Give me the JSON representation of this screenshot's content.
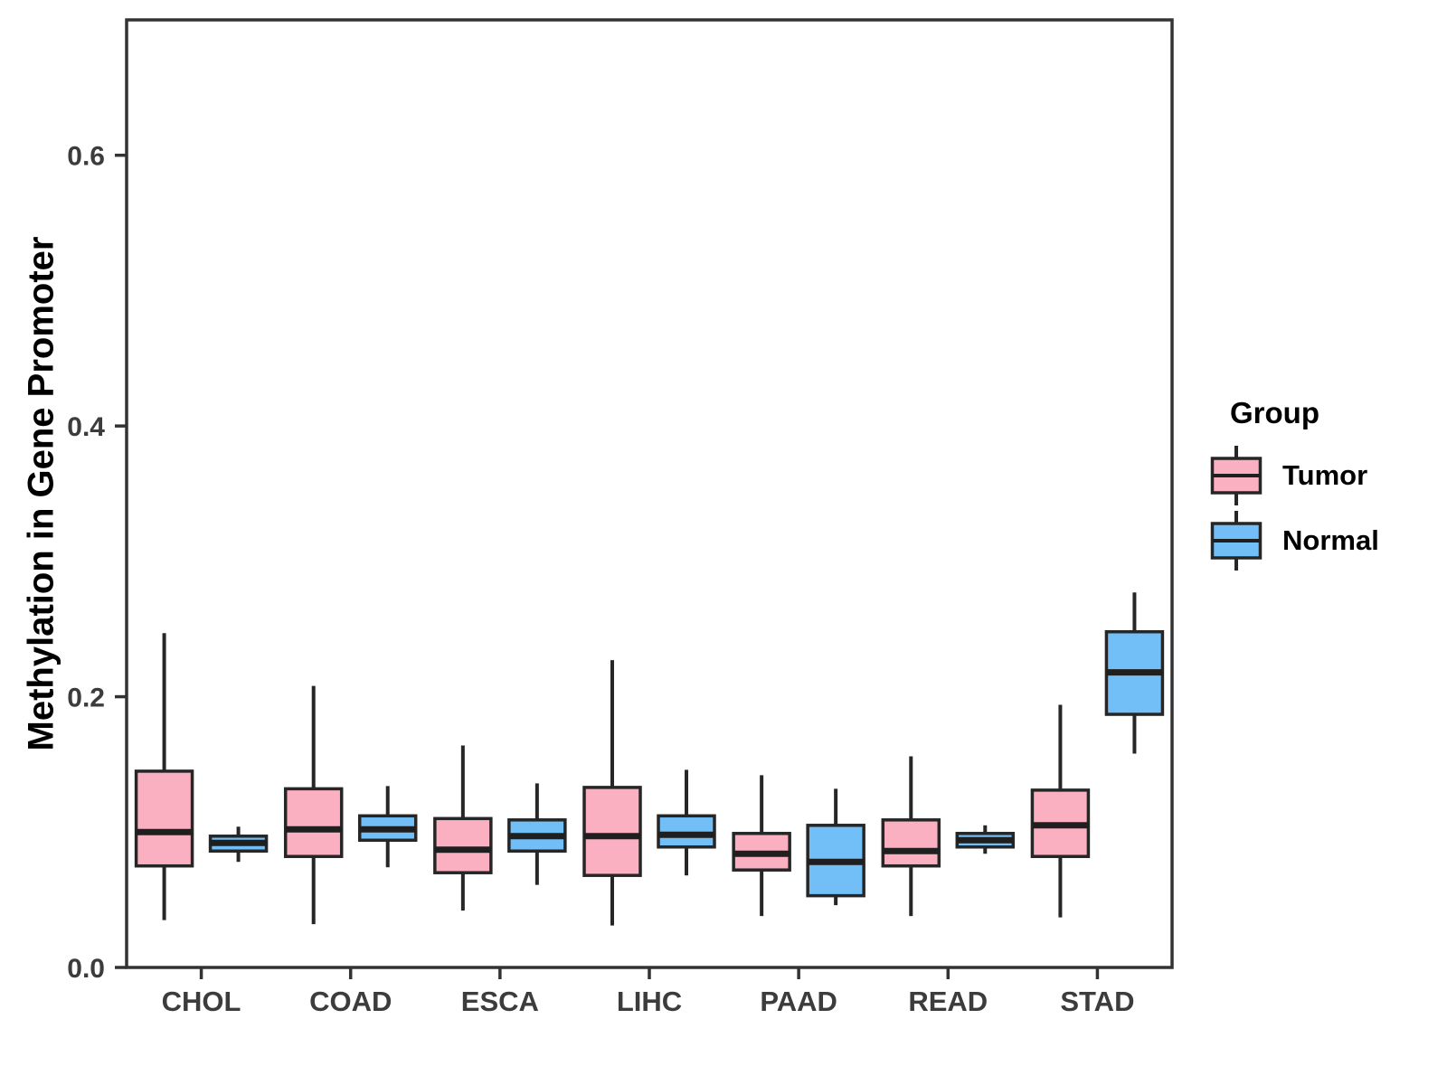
{
  "figure": {
    "y_axis": {
      "title": "Methylation in Gene Promoter",
      "tick_labels": [
        "0.0",
        "0.2",
        "0.4",
        "0.6"
      ]
    },
    "x_axis": {
      "categories": [
        "CHOL",
        "COAD",
        "ESCA",
        "LIHC",
        "PAAD",
        "READ",
        "STAD"
      ]
    },
    "legend": {
      "title": "Group",
      "items": [
        {
          "label": "Tumor",
          "color": "#FAB0C0"
        },
        {
          "label": "Normal",
          "color": "#72BEF6"
        }
      ]
    },
    "colors": {
      "tumor_fill": "#FAB0C0",
      "normal_fill": "#72BEF6",
      "box_stroke": "#262626",
      "panel_border": "#333333",
      "axis_text": "#3C3C3C"
    }
  },
  "chart_data": {
    "type": "box",
    "title": "",
    "xlabel": "",
    "ylabel": "Methylation in Gene Promoter",
    "categories": [
      "CHOL",
      "COAD",
      "ESCA",
      "LIHC",
      "PAAD",
      "READ",
      "STAD"
    ],
    "ylim": [
      0,
      0.7
    ],
    "yticks": [
      0,
      0.2,
      0.4,
      0.6
    ],
    "ytick_labels": [
      "0.0",
      "0.2",
      "0.4",
      "0.6"
    ],
    "grid": false,
    "legend_position": "right",
    "series": [
      {
        "name": "Tumor",
        "color": "#FAB0C0",
        "boxes": [
          {
            "min": 0.035,
            "q1": 0.075,
            "median": 0.1,
            "q3": 0.145,
            "max": 0.247
          },
          {
            "min": 0.032,
            "q1": 0.082,
            "median": 0.102,
            "q3": 0.132,
            "max": 0.208
          },
          {
            "min": 0.042,
            "q1": 0.07,
            "median": 0.087,
            "q3": 0.11,
            "max": 0.164
          },
          {
            "min": 0.031,
            "q1": 0.068,
            "median": 0.097,
            "q3": 0.133,
            "max": 0.227
          },
          {
            "min": 0.038,
            "q1": 0.072,
            "median": 0.084,
            "q3": 0.099,
            "max": 0.142
          },
          {
            "min": 0.038,
            "q1": 0.075,
            "median": 0.086,
            "q3": 0.109,
            "max": 0.156
          },
          {
            "min": 0.037,
            "q1": 0.082,
            "median": 0.105,
            "q3": 0.131,
            "max": 0.194
          }
        ]
      },
      {
        "name": "Normal",
        "color": "#72BEF6",
        "boxes": [
          {
            "min": 0.078,
            "q1": 0.086,
            "median": 0.092,
            "q3": 0.097,
            "max": 0.104
          },
          {
            "min": 0.074,
            "q1": 0.094,
            "median": 0.102,
            "q3": 0.112,
            "max": 0.134
          },
          {
            "min": 0.061,
            "q1": 0.086,
            "median": 0.097,
            "q3": 0.109,
            "max": 0.136
          },
          {
            "min": 0.068,
            "q1": 0.089,
            "median": 0.098,
            "q3": 0.112,
            "max": 0.146
          },
          {
            "min": 0.046,
            "q1": 0.053,
            "median": 0.078,
            "q3": 0.105,
            "max": 0.132
          },
          {
            "min": 0.084,
            "q1": 0.089,
            "median": 0.094,
            "q3": 0.099,
            "max": 0.105
          },
          {
            "min": 0.158,
            "q1": 0.187,
            "median": 0.218,
            "q3": 0.248,
            "max": 0.277
          }
        ]
      }
    ]
  }
}
